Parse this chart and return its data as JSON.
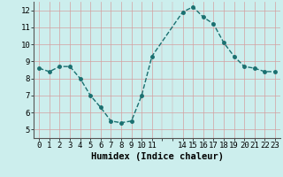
{
  "x": [
    0,
    1,
    2,
    3,
    4,
    5,
    6,
    7,
    8,
    9,
    10,
    11,
    14,
    15,
    16,
    17,
    18,
    19,
    20,
    21,
    22,
    23
  ],
  "y": [
    8.6,
    8.4,
    8.7,
    8.7,
    8.0,
    7.0,
    6.3,
    5.5,
    5.4,
    5.5,
    7.0,
    9.3,
    11.9,
    12.2,
    11.6,
    11.2,
    10.1,
    9.3,
    8.7,
    8.6,
    8.4,
    8.4
  ],
  "xlim": [
    -0.5,
    23.5
  ],
  "ylim": [
    4.5,
    12.5
  ],
  "xticks": [
    0,
    1,
    2,
    3,
    4,
    5,
    6,
    7,
    8,
    9,
    10,
    11,
    14,
    15,
    16,
    17,
    18,
    19,
    20,
    21,
    22,
    23
  ],
  "yticks": [
    5,
    6,
    7,
    8,
    9,
    10,
    11,
    12
  ],
  "xlabel": "Humidex (Indice chaleur)",
  "line_color": "#1a7070",
  "marker_color": "#1a7070",
  "bg_color": "#cceeed",
  "grid_color": "#d4a0a0",
  "marker": "o",
  "marker_size": 2.5,
  "line_width": 1.0,
  "xlabel_fontsize": 7.5,
  "tick_fontsize": 6.5
}
